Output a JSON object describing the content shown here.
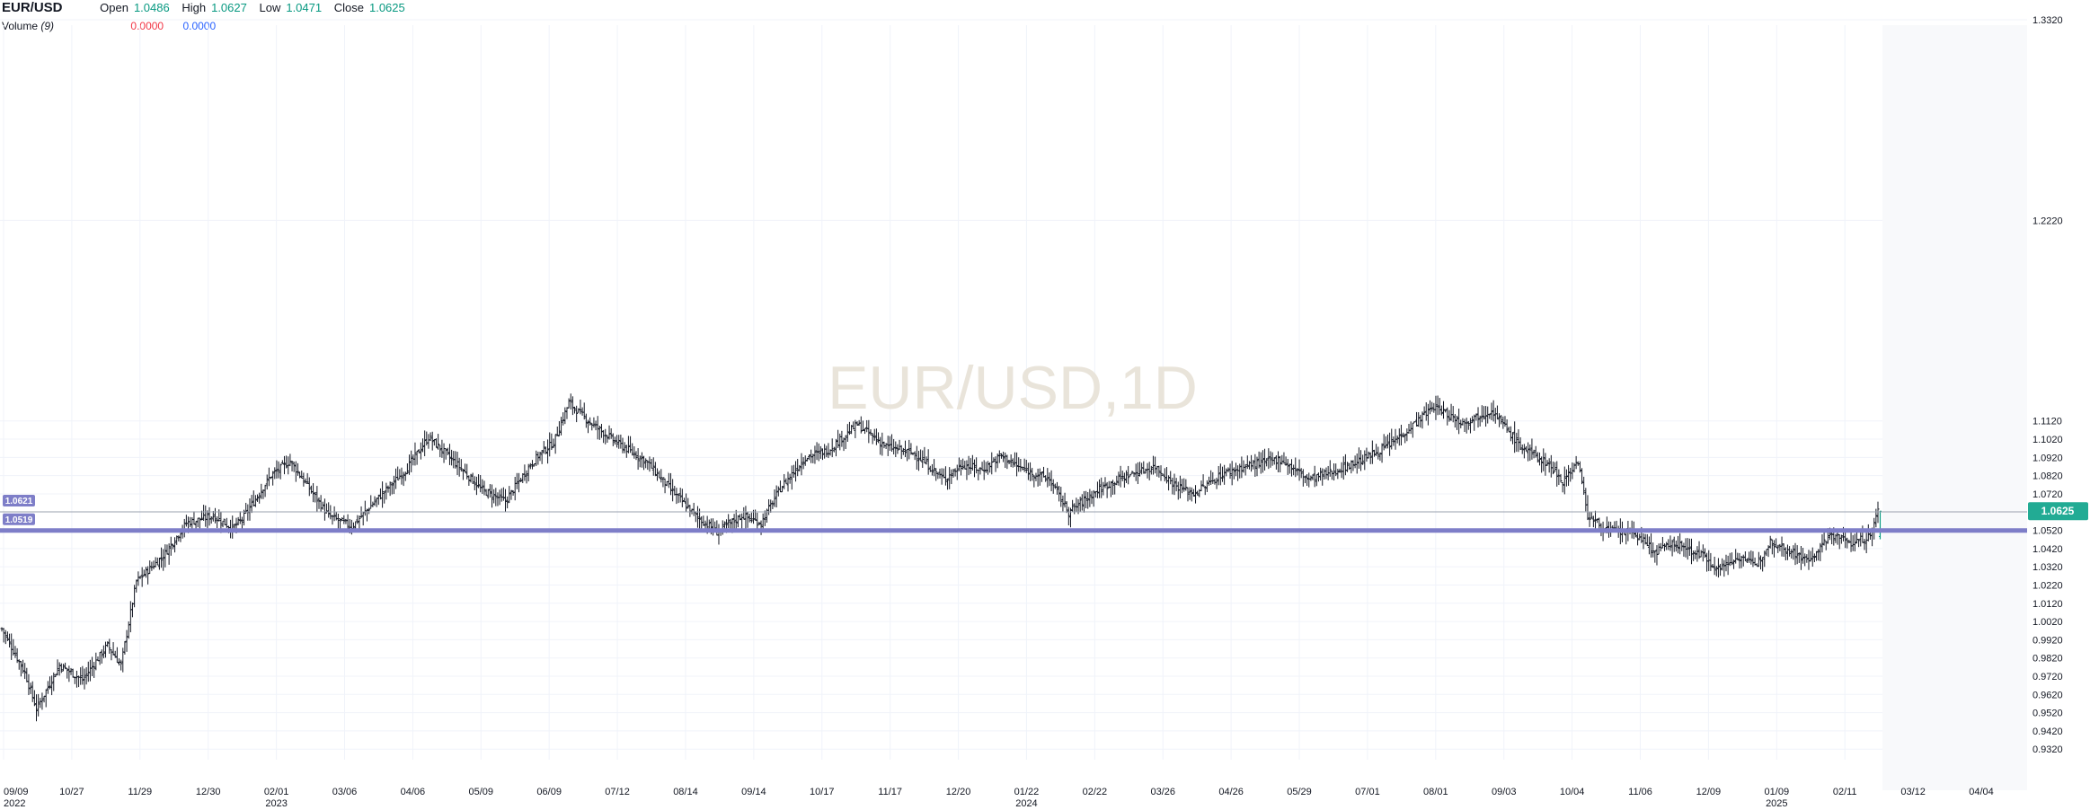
{
  "header": {
    "symbol": "EUR/USD",
    "open_label": "Open",
    "open": "1.0486",
    "high_label": "High",
    "high": "1.0627",
    "low_label": "Low",
    "low": "1.0471",
    "close_label": "Close",
    "close": "1.0625",
    "volume_label": "Volume",
    "volume_period": "(9)",
    "volume_down": "0.0000",
    "volume_up": "0.0000"
  },
  "watermark": "EUR/USD,1D",
  "colors": {
    "up": "#089981",
    "down": "#f23645",
    "neutral": "#131722",
    "hline": "#7e7ec8",
    "price_badge": "#22ab94",
    "grid": "#f0f3fa",
    "watermark": "#e9e4da"
  },
  "chart_data": {
    "type": "ohlc",
    "title": "EUR/USD,1D",
    "ylim": [
      0.9262,
      1.332
    ],
    "y_ticks": [
      "1.3320",
      "1.2220",
      "1.1120",
      "1.1020",
      "1.0920",
      "1.0820",
      "1.0720",
      "1.0520",
      "1.0420",
      "1.0320",
      "1.0220",
      "1.0120",
      "1.0020",
      "0.9920",
      "0.9820",
      "0.9720",
      "0.9620",
      "0.9520",
      "0.9420",
      "0.9320"
    ],
    "x_ticks": [
      {
        "label": "09/09",
        "sub": "2022"
      },
      {
        "label": "10/27"
      },
      {
        "label": "11/29"
      },
      {
        "label": "12/30"
      },
      {
        "label": "02/01",
        "sub": "2023"
      },
      {
        "label": "03/06"
      },
      {
        "label": "04/06"
      },
      {
        "label": "05/09"
      },
      {
        "label": "06/09"
      },
      {
        "label": "07/12"
      },
      {
        "label": "08/14"
      },
      {
        "label": "09/14"
      },
      {
        "label": "10/17"
      },
      {
        "label": "11/17"
      },
      {
        "label": "12/20"
      },
      {
        "label": "01/22",
        "sub": "2024"
      },
      {
        "label": "02/22"
      },
      {
        "label": "03/26"
      },
      {
        "label": "04/26"
      },
      {
        "label": "05/29"
      },
      {
        "label": "07/01"
      },
      {
        "label": "08/01"
      },
      {
        "label": "09/03"
      },
      {
        "label": "10/04"
      },
      {
        "label": "11/06"
      },
      {
        "label": "12/09"
      },
      {
        "label": "01/09",
        "sub": "2025"
      },
      {
        "label": "02/11"
      },
      {
        "label": "03/12"
      },
      {
        "label": "04/04"
      }
    ],
    "horizontal_lines": [
      {
        "label": "1.0621",
        "value": 1.0621,
        "style": "thin"
      },
      {
        "label": "1.0519",
        "value": 1.0519,
        "style": "thick"
      }
    ],
    "last_price": {
      "label": "1.0625",
      "value": 1.0625
    },
    "path_points": [
      [
        0,
        0.998
      ],
      [
        12,
        0.974
      ],
      [
        18,
        0.954
      ],
      [
        30,
        0.978
      ],
      [
        42,
        0.97
      ],
      [
        55,
        0.989
      ],
      [
        62,
        0.978
      ],
      [
        70,
        1.024
      ],
      [
        84,
        1.038
      ],
      [
        96,
        1.056
      ],
      [
        110,
        1.06
      ],
      [
        120,
        1.053
      ],
      [
        125,
        1.058
      ],
      [
        140,
        1.082
      ],
      [
        150,
        1.09
      ],
      [
        160,
        1.075
      ],
      [
        170,
        1.06
      ],
      [
        182,
        1.054
      ],
      [
        196,
        1.07
      ],
      [
        210,
        1.085
      ],
      [
        222,
        1.103
      ],
      [
        235,
        1.09
      ],
      [
        250,
        1.074
      ],
      [
        262,
        1.068
      ],
      [
        275,
        1.088
      ],
      [
        280,
        1.094
      ],
      [
        287,
        1.1
      ],
      [
        295,
        1.122
      ],
      [
        305,
        1.112
      ],
      [
        320,
        1.1
      ],
      [
        335,
        1.09
      ],
      [
        350,
        1.072
      ],
      [
        362,
        1.059
      ],
      [
        372,
        1.051
      ],
      [
        385,
        1.06
      ],
      [
        395,
        1.056
      ],
      [
        405,
        1.075
      ],
      [
        418,
        1.092
      ],
      [
        430,
        1.096
      ],
      [
        445,
        1.11
      ],
      [
        460,
        1.098
      ],
      [
        475,
        1.094
      ],
      [
        490,
        1.08
      ],
      [
        500,
        1.088
      ],
      [
        510,
        1.085
      ],
      [
        520,
        1.093
      ],
      [
        530,
        1.086
      ],
      [
        545,
        1.08
      ],
      [
        555,
        1.062
      ],
      [
        570,
        1.074
      ],
      [
        585,
        1.082
      ],
      [
        600,
        1.087
      ],
      [
        610,
        1.077
      ],
      [
        620,
        1.072
      ],
      [
        635,
        1.083
      ],
      [
        650,
        1.088
      ],
      [
        665,
        1.091
      ],
      [
        680,
        1.08
      ],
      [
        695,
        1.085
      ],
      [
        710,
        1.092
      ],
      [
        722,
        1.099
      ],
      [
        730,
        1.106
      ],
      [
        745,
        1.12
      ],
      [
        760,
        1.111
      ],
      [
        775,
        1.118
      ],
      [
        790,
        1.098
      ],
      [
        805,
        1.088
      ],
      [
        812,
        1.079
      ],
      [
        820,
        1.09
      ],
      [
        825,
        1.06
      ],
      [
        835,
        1.052
      ],
      [
        850,
        1.05
      ],
      [
        860,
        1.04
      ],
      [
        870,
        1.045
      ],
      [
        885,
        1.038
      ],
      [
        893,
        1.031
      ],
      [
        905,
        1.038
      ],
      [
        912,
        1.032
      ],
      [
        920,
        1.046
      ],
      [
        932,
        1.04
      ],
      [
        940,
        1.035
      ],
      [
        952,
        1.05
      ],
      [
        962,
        1.045
      ],
      [
        972,
        1.0486
      ],
      [
        976,
        1.0625
      ]
    ]
  }
}
